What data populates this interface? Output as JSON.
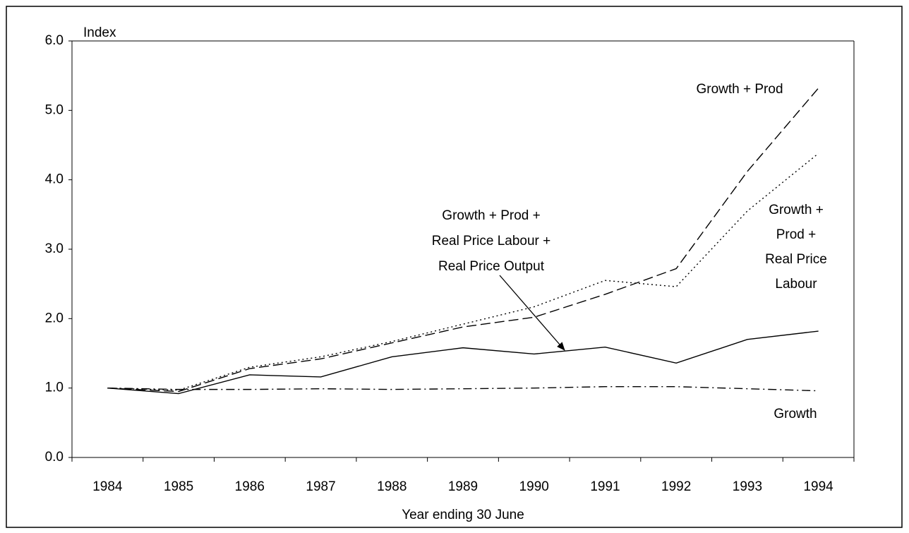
{
  "chart_data": {
    "type": "line",
    "y_label": "Index",
    "x_label": "Year ending 30 June",
    "categories": [
      "1984",
      "1985",
      "1986",
      "1987",
      "1988",
      "1989",
      "1990",
      "1991",
      "1992",
      "1993",
      "1994"
    ],
    "ylim": [
      0,
      6
    ],
    "yticks": [
      {
        "value": 0,
        "label": "0.0"
      },
      {
        "value": 1,
        "label": "1.0"
      },
      {
        "value": 2,
        "label": "2.0"
      },
      {
        "value": 3,
        "label": "3.0"
      },
      {
        "value": 4,
        "label": "4.0"
      },
      {
        "value": 5,
        "label": "5.0"
      },
      {
        "value": 6,
        "label": "6.0"
      }
    ],
    "series": [
      {
        "color": "#000000",
        "style": "dash-dot",
        "values": [
          1.0,
          0.98,
          0.98,
          0.99,
          0.98,
          0.99,
          1.0,
          1.02,
          1.02,
          0.99,
          0.96
        ]
      },
      {
        "color": "#000000",
        "style": "dashed",
        "values": [
          1.0,
          0.95,
          1.28,
          1.42,
          1.65,
          1.88,
          2.02,
          2.35,
          2.72,
          4.12,
          5.32
        ]
      },
      {
        "color": "#000000",
        "style": "dotted",
        "values": [
          1.0,
          0.97,
          1.3,
          1.45,
          1.67,
          1.92,
          2.17,
          2.55,
          2.46,
          3.55,
          4.38
        ]
      },
      {
        "color": "#000000",
        "style": "solid",
        "values": [
          1.0,
          0.92,
          1.19,
          1.16,
          1.45,
          1.58,
          1.49,
          1.59,
          1.36,
          1.7,
          1.82
        ]
      }
    ],
    "annotations": [
      {
        "lines": [
          "Growth"
        ]
      },
      {
        "lines": [
          "Growth + Prod"
        ]
      },
      {
        "lines": [
          "Growth +",
          "Prod +",
          "Real Price",
          "Labour"
        ]
      },
      {
        "lines": [
          "Growth + Prod +",
          "Real Price Labour +",
          "Real Price Output"
        ]
      }
    ]
  }
}
